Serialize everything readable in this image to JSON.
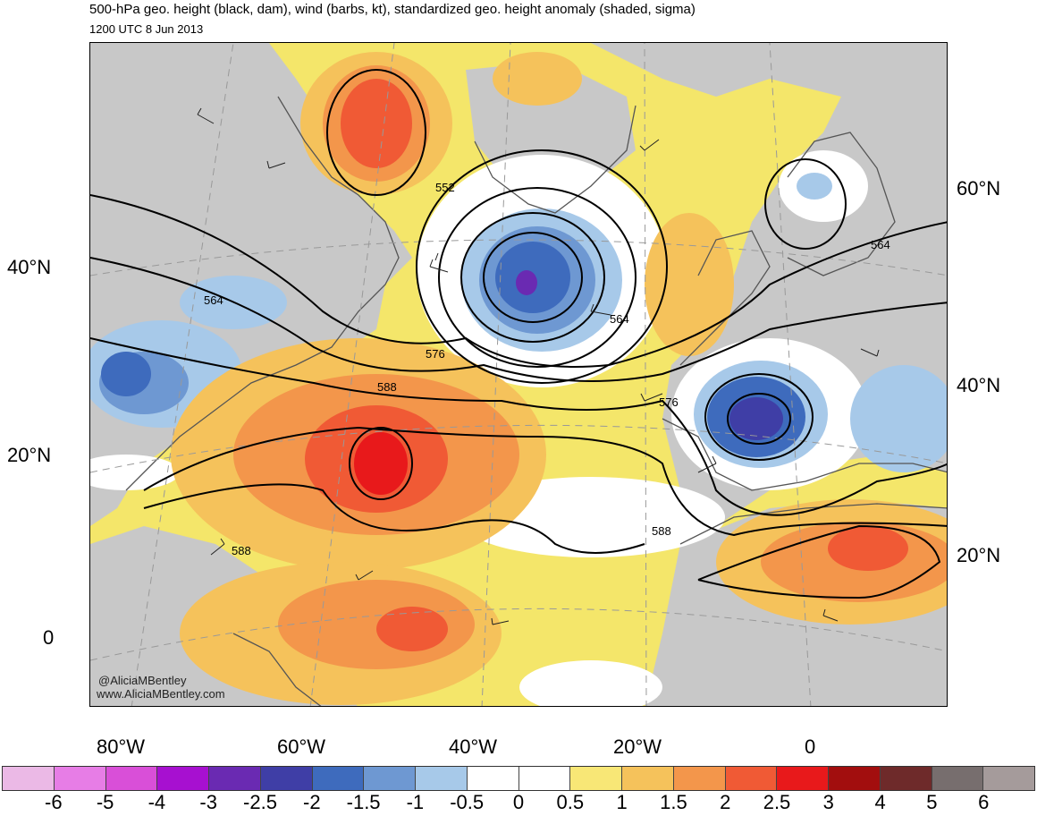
{
  "title": "500-hPa geo. height (black, dam), wind (barbs, kt), standardized geo. height anomaly (shaded, sigma)",
  "subtitle": "1200 UTC 8 Jun 2013",
  "credit": {
    "handle": "@AliciaMBentley",
    "site": "www.AliciaMBentley.com"
  },
  "left_lat_labels": [
    "40°N",
    "20°N",
    "0"
  ],
  "right_lat_labels": [
    "60°N",
    "40°N",
    "20°N"
  ],
  "lon_labels": [
    "80°W",
    "60°W",
    "40°W",
    "20°W",
    "0"
  ],
  "contour_labels": [
    "552",
    "564",
    "576",
    "588",
    "564",
    "576",
    "588",
    "588",
    "564"
  ],
  "colorbar": {
    "labels": [
      "-6",
      "-5",
      "-4",
      "-3",
      "-2.5",
      "-2",
      "-1.5",
      "-1",
      "-0.5",
      "0",
      "0.5",
      "1",
      "1.5",
      "2",
      "2.5",
      "3",
      "4",
      "5",
      "6"
    ],
    "colors": [
      "#ebb9e6",
      "#e77de6",
      "#d94fd8",
      "#a710d0",
      "#6a2ab2",
      "#3f3ea6",
      "#3e6bbd",
      "#6e98d2",
      "#a7c9e9",
      "#ffffff",
      "#ffffff",
      "#f8e776",
      "#f5c25b",
      "#f3964b",
      "#f05a35",
      "#e8191b",
      "#a20e0e",
      "#6e2a2a",
      "#776e6e",
      "#a59b9b"
    ]
  },
  "palette": {
    "land": "#c8c8c8",
    "neutral_pos": "#f4e66a",
    "contour": "#000000",
    "coast": "#555555"
  }
}
